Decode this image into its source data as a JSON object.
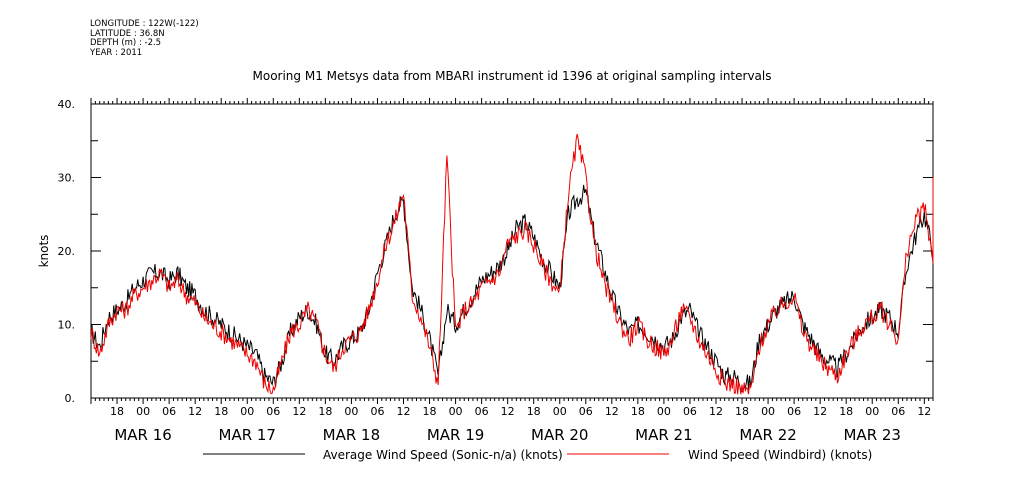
{
  "header": {
    "meta_lines": [
      "LONGITUDE : 122W(-122)",
      "LATITUDE : 36.8N",
      "DEPTH (m) : -2.5",
      "YEAR : 2011"
    ],
    "title": "Mooring M1 Metsys data from MBARI instrument id 1396 at original sampling intervals"
  },
  "chart_data": {
    "type": "line",
    "title": "Mooring M1 Metsys data from MBARI instrument id 1396 at original sampling intervals",
    "ylabel": "knots",
    "xlabel": "",
    "ylim": [
      0,
      40
    ],
    "y_ticks": [
      0,
      10,
      20,
      30,
      40
    ],
    "y_tick_labels": [
      "0.",
      "10.",
      "20.",
      "30.",
      "40."
    ],
    "xlim": [
      "MAR 15 12:00",
      "MAR 23 14:00"
    ],
    "hour_ticks": [
      "18",
      "00",
      "06",
      "12",
      "18",
      "00",
      "06",
      "12",
      "18",
      "00",
      "06",
      "12",
      "18",
      "00",
      "06",
      "12",
      "18",
      "00",
      "06",
      "12",
      "18",
      "00",
      "06",
      "12",
      "18",
      "00",
      "06",
      "12",
      "18",
      "00",
      "06",
      "12"
    ],
    "date_labels": [
      "MAR 16",
      "MAR 17",
      "MAR 18",
      "MAR 19",
      "MAR 20",
      "MAR 21",
      "MAR 22",
      "MAR 23"
    ],
    "grid": false,
    "legend_position": "bottom",
    "series": [
      {
        "name": "Average Wind Speed (Sonic-n/a) (knots)",
        "color": "#000000",
        "x_hours": [
          0,
          2,
          4,
          6,
          8,
          10,
          12,
          14,
          16,
          18,
          20,
          22,
          24,
          26,
          28,
          30,
          32,
          34,
          36,
          38,
          40,
          42,
          44,
          46,
          48,
          50,
          52,
          54,
          56,
          58,
          60,
          62,
          64,
          66,
          68,
          70,
          72,
          74,
          76,
          78,
          80,
          82,
          84,
          86,
          88,
          90,
          92,
          94,
          96,
          98,
          100,
          102,
          104,
          106,
          108,
          110,
          112,
          114,
          116,
          118,
          120,
          122,
          124,
          126,
          128,
          130,
          132,
          134,
          136,
          138,
          140,
          142,
          144,
          146,
          148,
          150,
          152,
          154,
          156,
          158,
          160,
          162,
          164,
          166,
          168,
          170,
          172,
          174,
          176,
          178,
          180,
          182,
          184,
          186,
          188,
          190,
          192,
          194,
          196
        ],
        "values": [
          9,
          7,
          11,
          12,
          13,
          15,
          16,
          17,
          17,
          16,
          17,
          15,
          14,
          12,
          11,
          10,
          9,
          8,
          7,
          6,
          3,
          2,
          5,
          9,
          11,
          12,
          10,
          6,
          5,
          7,
          8,
          9,
          12,
          17,
          21,
          25,
          27,
          15,
          12,
          8,
          3,
          12,
          10,
          12,
          14,
          16,
          17,
          18,
          20,
          23,
          24,
          22,
          19,
          17,
          15,
          25,
          27,
          28,
          22,
          18,
          14,
          11,
          9,
          10,
          9,
          8,
          7,
          8,
          11,
          12,
          9,
          7,
          5,
          3,
          3,
          2,
          2,
          8,
          10,
          12,
          13,
          14,
          10,
          8,
          6,
          5,
          4,
          6,
          8,
          10,
          11,
          12,
          11,
          9,
          18,
          22,
          25,
          20,
          14
        ]
      },
      {
        "name": "Wind Speed (Windbird) (knots)",
        "color": "#ee0000",
        "x_hours": [
          0,
          2,
          4,
          6,
          8,
          10,
          12,
          14,
          16,
          18,
          20,
          22,
          24,
          26,
          28,
          30,
          32,
          34,
          36,
          38,
          40,
          42,
          44,
          46,
          48,
          50,
          52,
          54,
          56,
          58,
          60,
          62,
          64,
          66,
          68,
          70,
          72,
          74,
          76,
          78,
          80,
          82,
          84,
          86,
          88,
          90,
          92,
          94,
          96,
          98,
          100,
          102,
          104,
          106,
          108,
          110,
          112,
          114,
          116,
          118,
          120,
          122,
          124,
          126,
          128,
          130,
          132,
          134,
          136,
          138,
          140,
          142,
          144,
          146,
          148,
          150,
          152,
          154,
          156,
          158,
          160,
          162,
          164,
          166,
          168,
          170,
          172,
          174,
          176,
          178,
          180,
          182,
          184,
          186,
          188,
          190,
          192,
          194,
          196
        ],
        "values": [
          9,
          6,
          10,
          12,
          12,
          14,
          15,
          16,
          17,
          15,
          16,
          14,
          13,
          11,
          10,
          9,
          8,
          7,
          6,
          5,
          2,
          1,
          5,
          9,
          10,
          12,
          10,
          6,
          4,
          7,
          8,
          9,
          12,
          16,
          21,
          24,
          28,
          14,
          11,
          7,
          2,
          33,
          9,
          12,
          13,
          15,
          16,
          17,
          21,
          22,
          23,
          21,
          18,
          16,
          14,
          28,
          35,
          30,
          21,
          16,
          13,
          10,
          8,
          10,
          8,
          7,
          6,
          8,
          12,
          11,
          8,
          6,
          4,
          2,
          2,
          1,
          1,
          7,
          10,
          12,
          13,
          14,
          9,
          7,
          5,
          4,
          3,
          6,
          8,
          10,
          11,
          12,
          10,
          8,
          20,
          24,
          26,
          19,
          30
        ]
      }
    ]
  },
  "legend": {
    "items": [
      {
        "label": "Average Wind Speed (Sonic-n/a) (knots)",
        "color": "#000000"
      },
      {
        "label": "Wind Speed (Windbird) (knots)",
        "color": "#ee0000"
      }
    ]
  }
}
